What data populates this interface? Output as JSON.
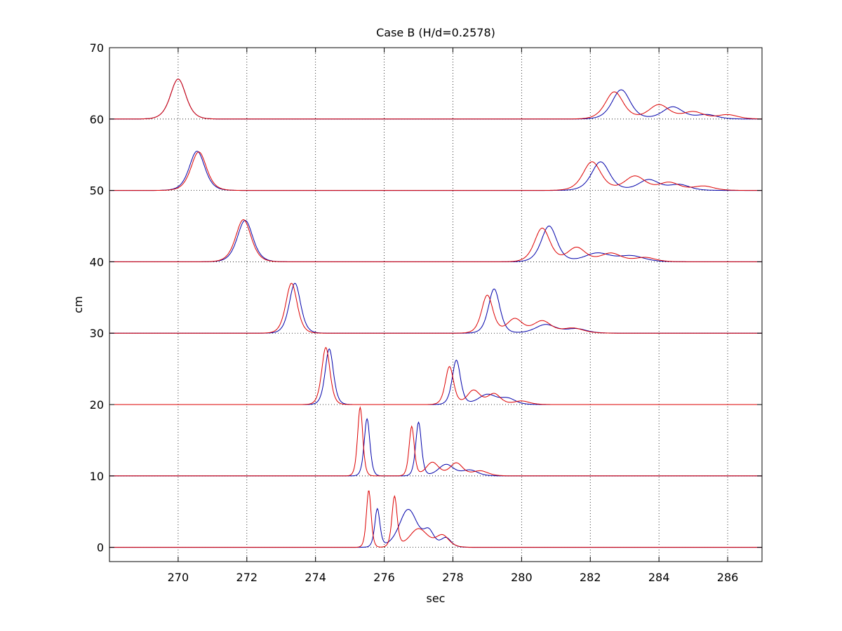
{
  "chart_data": {
    "type": "line",
    "title": "Case B (H/d=0.2578)",
    "xlabel": "sec",
    "ylabel": "cm",
    "xlim": [
      268,
      287
    ],
    "ylim": [
      -2,
      70
    ],
    "xticks": [
      270,
      272,
      274,
      276,
      278,
      280,
      282,
      284,
      286
    ],
    "yticks": [
      0,
      10,
      20,
      30,
      40,
      50,
      60,
      70
    ],
    "grid": true,
    "grid_style": "dotted",
    "colors": {
      "blue": "#0000aa",
      "red": "#dd0000"
    },
    "gauges": [
      {
        "baseline": 60,
        "blue_peaks": [
          [
            270.0,
            5.6,
            0.3
          ],
          [
            282.9,
            4.1,
            0.35
          ],
          [
            284.4,
            1.7,
            0.4
          ],
          [
            285.4,
            0.6,
            0.4
          ]
        ],
        "red_peaks": [
          [
            270.0,
            5.6,
            0.3
          ],
          [
            282.7,
            3.8,
            0.35
          ],
          [
            284.0,
            2.0,
            0.4
          ],
          [
            285.0,
            1.0,
            0.4
          ],
          [
            286.0,
            0.6,
            0.4
          ]
        ]
      },
      {
        "baseline": 50,
        "blue_peaks": [
          [
            270.55,
            5.5,
            0.3
          ],
          [
            282.3,
            4.0,
            0.35
          ],
          [
            283.7,
            1.5,
            0.4
          ],
          [
            284.6,
            0.8,
            0.4
          ]
        ],
        "red_peaks": [
          [
            270.6,
            5.4,
            0.3
          ],
          [
            282.05,
            4.0,
            0.35
          ],
          [
            283.3,
            2.0,
            0.4
          ],
          [
            284.3,
            1.1,
            0.4
          ],
          [
            285.3,
            0.6,
            0.4
          ]
        ]
      },
      {
        "baseline": 40,
        "blue_peaks": [
          [
            271.95,
            5.8,
            0.3
          ],
          [
            280.8,
            5.0,
            0.3
          ],
          [
            282.2,
            1.2,
            0.5
          ],
          [
            283.2,
            0.8,
            0.5
          ]
        ],
        "red_peaks": [
          [
            271.9,
            5.9,
            0.3
          ],
          [
            280.6,
            4.7,
            0.3
          ],
          [
            281.6,
            2.0,
            0.35
          ],
          [
            282.6,
            1.2,
            0.4
          ],
          [
            283.6,
            0.6,
            0.4
          ]
        ]
      },
      {
        "baseline": 30,
        "blue_peaks": [
          [
            273.4,
            7.0,
            0.22
          ],
          [
            279.2,
            6.2,
            0.22
          ],
          [
            280.7,
            1.2,
            0.4
          ],
          [
            281.6,
            0.6,
            0.4
          ]
        ],
        "red_peaks": [
          [
            273.3,
            7.0,
            0.22
          ],
          [
            279.0,
            5.3,
            0.22
          ],
          [
            279.8,
            2.0,
            0.3
          ],
          [
            280.6,
            1.7,
            0.35
          ],
          [
            281.5,
            0.7,
            0.4
          ]
        ]
      },
      {
        "baseline": 20,
        "blue_peaks": [
          [
            274.4,
            7.8,
            0.16
          ],
          [
            278.1,
            6.2,
            0.16
          ],
          [
            279.0,
            1.4,
            0.35
          ],
          [
            279.6,
            0.8,
            0.3
          ]
        ],
        "red_peaks": [
          [
            274.3,
            8.0,
            0.16
          ],
          [
            277.9,
            5.3,
            0.16
          ],
          [
            278.6,
            2.0,
            0.25
          ],
          [
            279.2,
            1.5,
            0.25
          ],
          [
            280.0,
            0.5,
            0.3
          ]
        ]
      },
      {
        "baseline": 10,
        "blue_peaks": [
          [
            275.5,
            8.0,
            0.11
          ],
          [
            277.0,
            7.5,
            0.11
          ],
          [
            277.8,
            1.6,
            0.3
          ],
          [
            278.5,
            0.8,
            0.3
          ]
        ],
        "red_peaks": [
          [
            275.3,
            9.6,
            0.1
          ],
          [
            276.8,
            6.9,
            0.1
          ],
          [
            277.4,
            1.9,
            0.25
          ],
          [
            278.1,
            1.8,
            0.25
          ],
          [
            278.8,
            0.7,
            0.3
          ]
        ]
      },
      {
        "baseline": 0,
        "blue_peaks": [
          [
            275.8,
            5.3,
            0.1
          ],
          [
            276.7,
            5.3,
            0.35
          ],
          [
            277.3,
            2.0,
            0.2
          ],
          [
            277.8,
            1.3,
            0.2
          ]
        ],
        "red_peaks": [
          [
            275.55,
            8.0,
            0.09
          ],
          [
            276.3,
            7.0,
            0.1
          ],
          [
            277.0,
            2.6,
            0.35
          ],
          [
            277.7,
            1.6,
            0.25
          ]
        ]
      }
    ]
  }
}
